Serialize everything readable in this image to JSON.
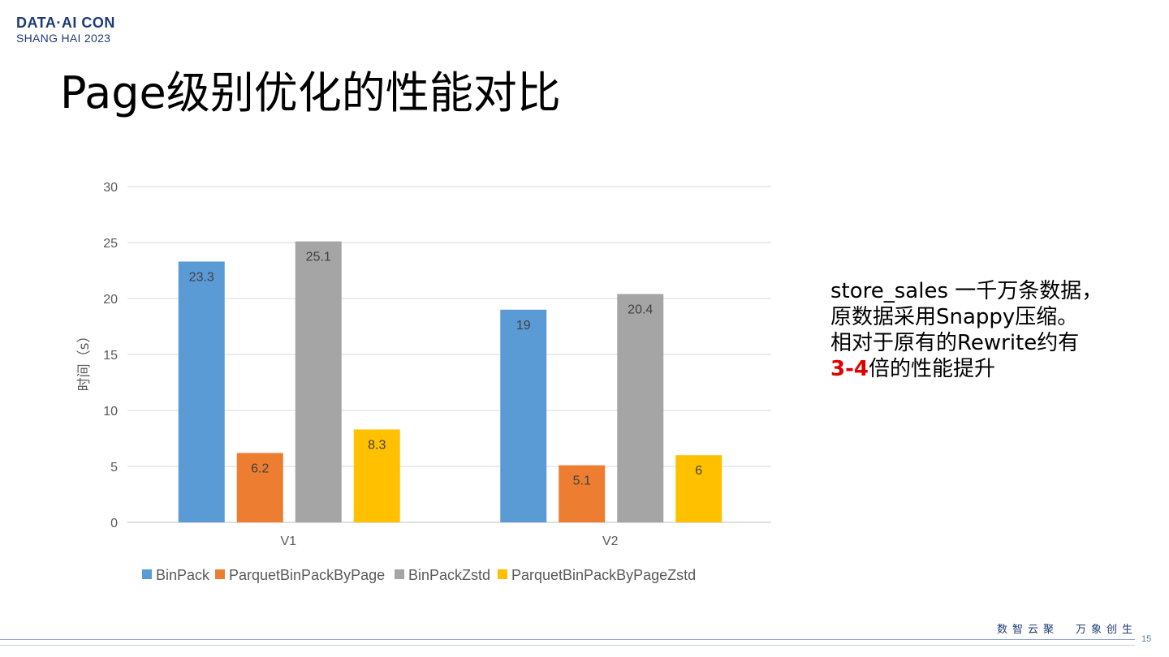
{
  "logo": {
    "line1": "DATA·AI CON",
    "line2": "SHANG HAI 2023"
  },
  "title": "Page级别优化的性能对比",
  "note": {
    "line1": "store_sales 一千万条数据，",
    "line2": "原数据采用Snappy压缩。",
    "line3": "相对于原有的Rewrite约有",
    "line4_highlight": "3-4",
    "line4_rest": "倍的性能提升"
  },
  "footer": {
    "slogan_left": "数智云聚",
    "slogan_right": "万象创生",
    "page_number": "15"
  },
  "colors": {
    "BinPack": "#5b9bd5",
    "ParquetBinPackByPage": "#ed7d31",
    "BinPackZstd": "#a5a5a5",
    "ParquetBinPackByPageZstd": "#ffc000",
    "highlight": "#e00000",
    "brand": "#1f3b73"
  },
  "chart_data": {
    "type": "bar",
    "categories": [
      "V1",
      "V2"
    ],
    "series": [
      {
        "name": "BinPack",
        "values": [
          23.3,
          19
        ],
        "color": "#5b9bd5"
      },
      {
        "name": "ParquetBinPackByPage",
        "values": [
          6.2,
          5.1
        ],
        "color": "#ed7d31"
      },
      {
        "name": "BinPackZstd",
        "values": [
          25.1,
          20.4
        ],
        "color": "#a5a5a5"
      },
      {
        "name": "ParquetBinPackByPageZstd",
        "values": [
          8.3,
          6
        ],
        "color": "#ffc000"
      }
    ],
    "ylabel": "时间（s）",
    "yticks": [
      0,
      5,
      10,
      15,
      20,
      25,
      30
    ],
    "ylim": [
      0,
      30
    ],
    "grid": true,
    "legend": "bottom"
  }
}
